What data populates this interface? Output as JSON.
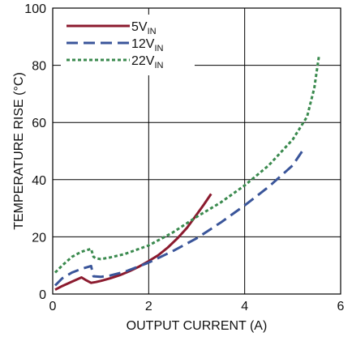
{
  "chart_data": {
    "type": "line",
    "xlabel": "OUTPUT CURRENT (A)",
    "ylabel": "TEMPERATURE RISE (°C)",
    "xlim": [
      0,
      6
    ],
    "ylim": [
      0,
      100
    ],
    "x_ticks": [
      0,
      2,
      4,
      6
    ],
    "y_ticks": [
      0,
      20,
      40,
      60,
      80,
      100
    ],
    "grid": true,
    "legend_position": "top-left",
    "series": [
      {
        "name": "5V",
        "name_sub": "IN",
        "color": "#8b1a2e",
        "style": "solid",
        "x": [
          0.05,
          0.2,
          0.4,
          0.6,
          0.7,
          0.8,
          0.9,
          1.0,
          1.2,
          1.4,
          1.6,
          1.8,
          2.0,
          2.2,
          2.4,
          2.6,
          2.8,
          3.0,
          3.15,
          3.3
        ],
        "y": [
          1.5,
          2.8,
          4.3,
          5.8,
          4.8,
          3.9,
          4.2,
          4.6,
          5.5,
          6.6,
          8.0,
          9.6,
          11.5,
          13.6,
          16.3,
          19.5,
          23.2,
          27.8,
          31.3,
          35.0
        ]
      },
      {
        "name": "12V",
        "name_sub": "IN",
        "color": "#3a559a",
        "style": "dashed",
        "x": [
          0.05,
          0.2,
          0.4,
          0.6,
          0.8,
          0.85,
          1.0,
          1.2,
          1.5,
          2.0,
          2.5,
          3.0,
          3.5,
          4.0,
          4.5,
          5.0,
          5.2
        ],
        "y": [
          3.0,
          5.5,
          7.5,
          8.8,
          9.8,
          6.2,
          6.0,
          6.5,
          7.8,
          11.0,
          15.0,
          19.5,
          25.0,
          31.0,
          37.5,
          45.0,
          50.0
        ]
      },
      {
        "name": "22V",
        "name_sub": "IN",
        "color": "#3a8a4e",
        "style": "dotted",
        "x": [
          0.05,
          0.2,
          0.4,
          0.6,
          0.8,
          0.85,
          0.9,
          1.0,
          1.2,
          1.5,
          2.0,
          2.5,
          3.0,
          3.5,
          4.0,
          4.5,
          5.0,
          5.3,
          5.45,
          5.55
        ],
        "y": [
          7.5,
          10.0,
          13.0,
          14.8,
          15.8,
          13.0,
          12.5,
          12.2,
          12.8,
          14.0,
          17.0,
          21.5,
          27.0,
          32.0,
          38.0,
          45.0,
          54.0,
          62.0,
          72.0,
          83.5
        ]
      }
    ]
  }
}
